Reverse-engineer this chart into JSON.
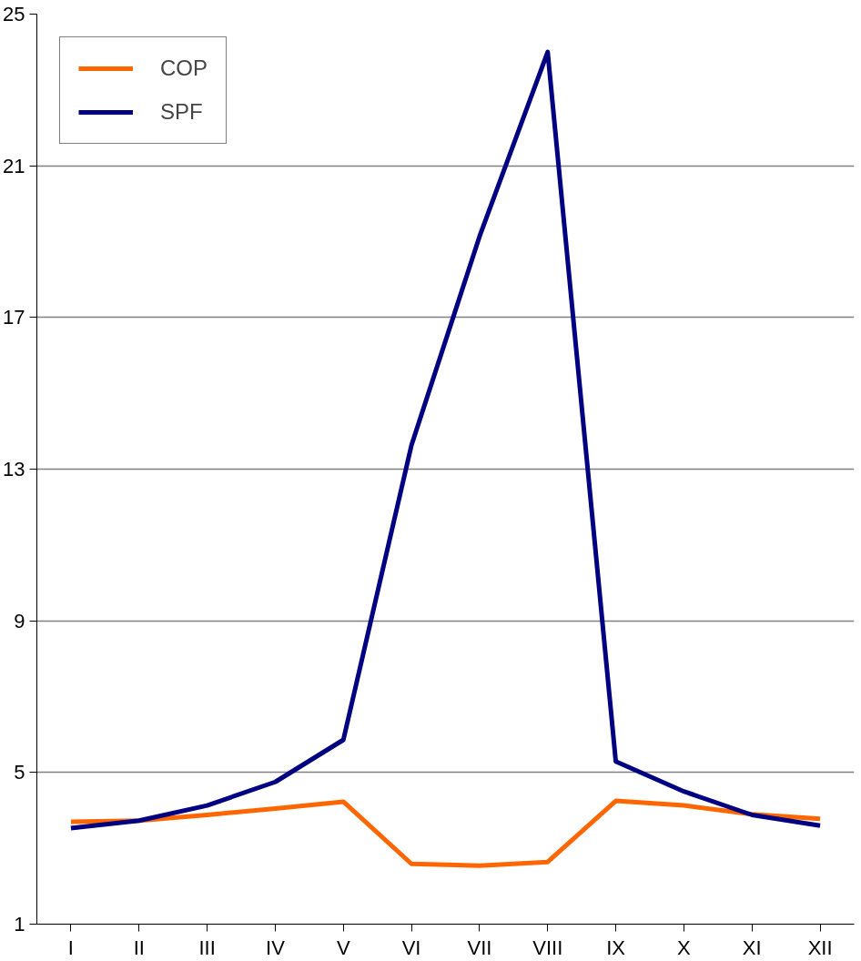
{
  "chart_data": {
    "type": "line",
    "categories": [
      "I",
      "II",
      "III",
      "IV",
      "V",
      "VI",
      "VII",
      "VIII",
      "IX",
      "X",
      "XI",
      "XII"
    ],
    "series": [
      {
        "name": "COP",
        "color": "#ff6600",
        "values": [
          3.7,
          3.73,
          3.88,
          4.05,
          4.23,
          2.59,
          2.54,
          2.64,
          4.25,
          4.13,
          3.9,
          3.78
        ]
      },
      {
        "name": "SPF",
        "color": "#000080",
        "values": [
          3.53,
          3.73,
          4.13,
          4.75,
          5.86,
          13.63,
          19.14,
          24.0,
          5.29,
          4.5,
          3.88,
          3.6
        ]
      }
    ],
    "ylim": [
      1,
      25
    ],
    "yticks": [
      1,
      5,
      9,
      13,
      17,
      21,
      25
    ],
    "grid": "y",
    "legend": "top left",
    "marker": "none",
    "line_style": "solid"
  }
}
